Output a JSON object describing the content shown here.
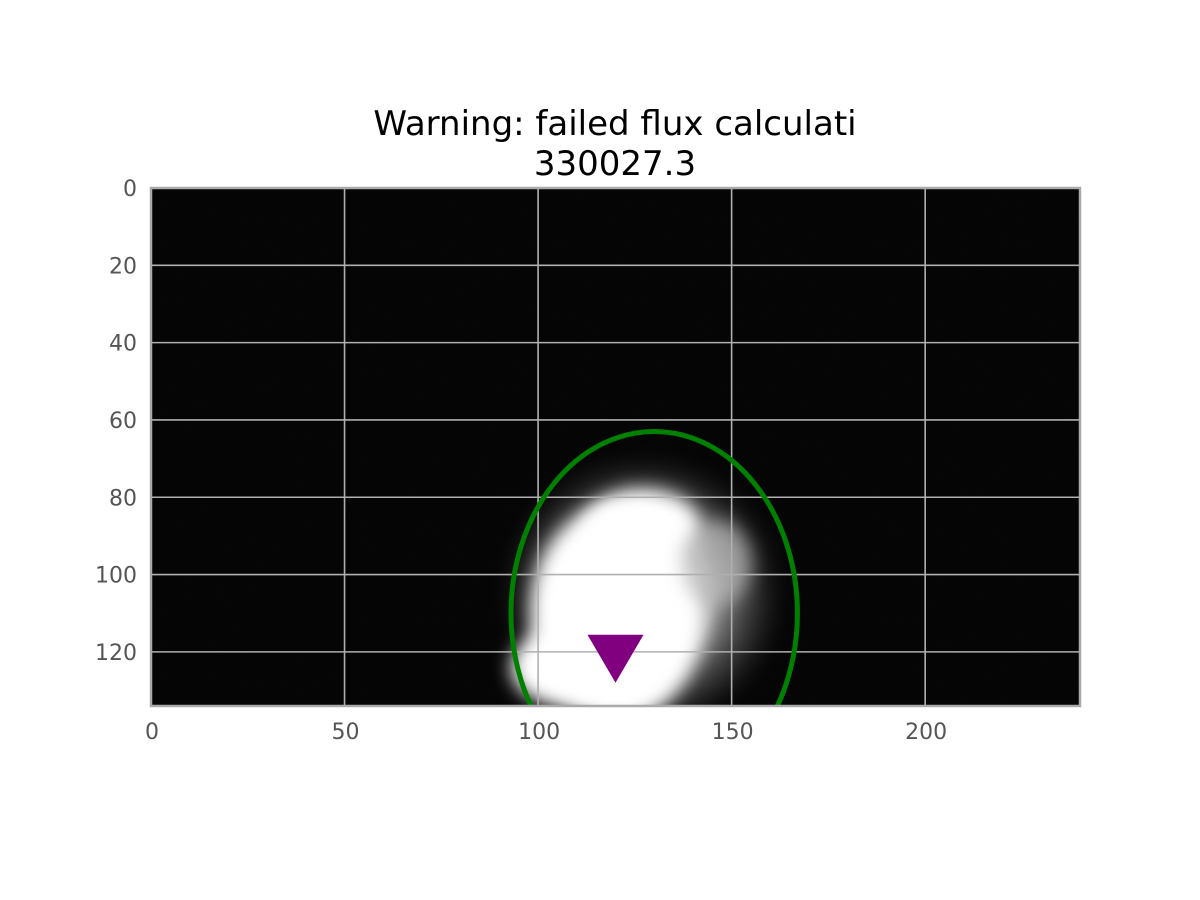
{
  "chart_data": {
    "type": "heatmap",
    "title_lines": [
      "Warning: failed flux calculati",
      "330027.3"
    ],
    "xlabel": "",
    "ylabel": "",
    "xlim": [
      0,
      240
    ],
    "ylim": [
      0,
      134
    ],
    "y_inverted": true,
    "x_ticks": [
      0,
      50,
      100,
      150,
      200
    ],
    "x_tick_labels": [
      "0",
      "50",
      "100",
      "150",
      "200"
    ],
    "y_ticks": [
      0,
      20,
      40,
      60,
      80,
      100,
      120
    ],
    "y_tick_labels": [
      "0",
      "20",
      "40",
      "60",
      "80",
      "100",
      "120"
    ],
    "grid": true,
    "colormap": "gray",
    "image_description_values": {
      "source_center": [
        127,
        100
      ],
      "source_core_extent": {
        "x": [
          95,
          150
        ],
        "y": [
          78,
          134
        ]
      }
    },
    "aperture": {
      "shape": "ellipse",
      "center": [
        130,
        110
      ],
      "semi_axis_x": 37,
      "semi_axis_y": 47,
      "color": "#008000"
    },
    "marker": {
      "shape": "triangle-down",
      "x": 120,
      "y": 121,
      "color": "#800080"
    }
  }
}
